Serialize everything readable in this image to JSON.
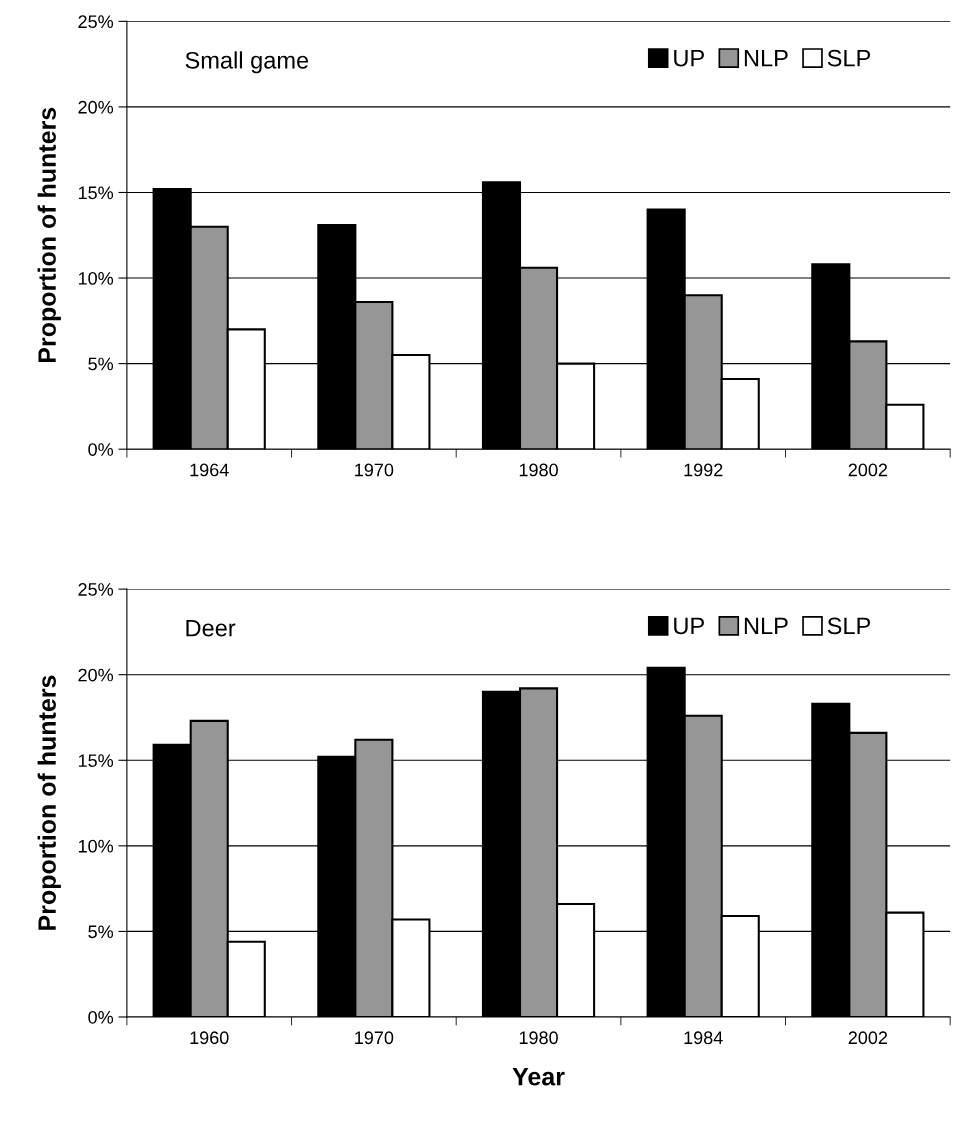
{
  "chart_data": [
    {
      "type": "bar",
      "title": "Small game",
      "ylabel": "Proportion of hunters",
      "categories": [
        "1964",
        "1970",
        "1980",
        "1992",
        "2002"
      ],
      "series": [
        {
          "name": "UP",
          "color": "#000000",
          "values": [
            15.2,
            13.1,
            15.6,
            14.0,
            10.8
          ]
        },
        {
          "name": "NLP",
          "color": "#969696",
          "values": [
            13.0,
            8.6,
            10.6,
            9.0,
            6.3
          ]
        },
        {
          "name": "SLP",
          "color": "#ffffff",
          "values": [
            7.0,
            5.5,
            5.0,
            4.1,
            2.6
          ]
        }
      ],
      "ylim": [
        0,
        25
      ],
      "yticks": [
        {
          "value": 0,
          "label": "0%"
        },
        {
          "value": 5,
          "label": "5%"
        },
        {
          "value": 10,
          "label": "10%"
        },
        {
          "value": 15,
          "label": "15%"
        },
        {
          "value": 20,
          "label": "20%"
        },
        {
          "value": 25,
          "label": "25%"
        }
      ],
      "grid": "y",
      "legend": "top right"
    },
    {
      "type": "bar",
      "title": "Deer",
      "ylabel": "Proportion of hunters",
      "xlabel": "Year",
      "categories": [
        "1960",
        "1970",
        "1980",
        "1984",
        "2002"
      ],
      "series": [
        {
          "name": "UP",
          "color": "#000000",
          "values": [
            15.9,
            15.2,
            19.0,
            20.4,
            18.3
          ]
        },
        {
          "name": "NLP",
          "color": "#969696",
          "values": [
            17.3,
            16.2,
            19.2,
            17.6,
            16.6
          ]
        },
        {
          "name": "SLP",
          "color": "#ffffff",
          "values": [
            4.4,
            5.7,
            6.6,
            5.9,
            6.1
          ]
        }
      ],
      "ylim": [
        0,
        25
      ],
      "yticks": [
        {
          "value": 0,
          "label": "0%"
        },
        {
          "value": 5,
          "label": "5%"
        },
        {
          "value": 10,
          "label": "10%"
        },
        {
          "value": 15,
          "label": "15%"
        },
        {
          "value": 20,
          "label": "20%"
        },
        {
          "value": 25,
          "label": "25%"
        }
      ],
      "grid": "y",
      "legend": "top right"
    }
  ]
}
